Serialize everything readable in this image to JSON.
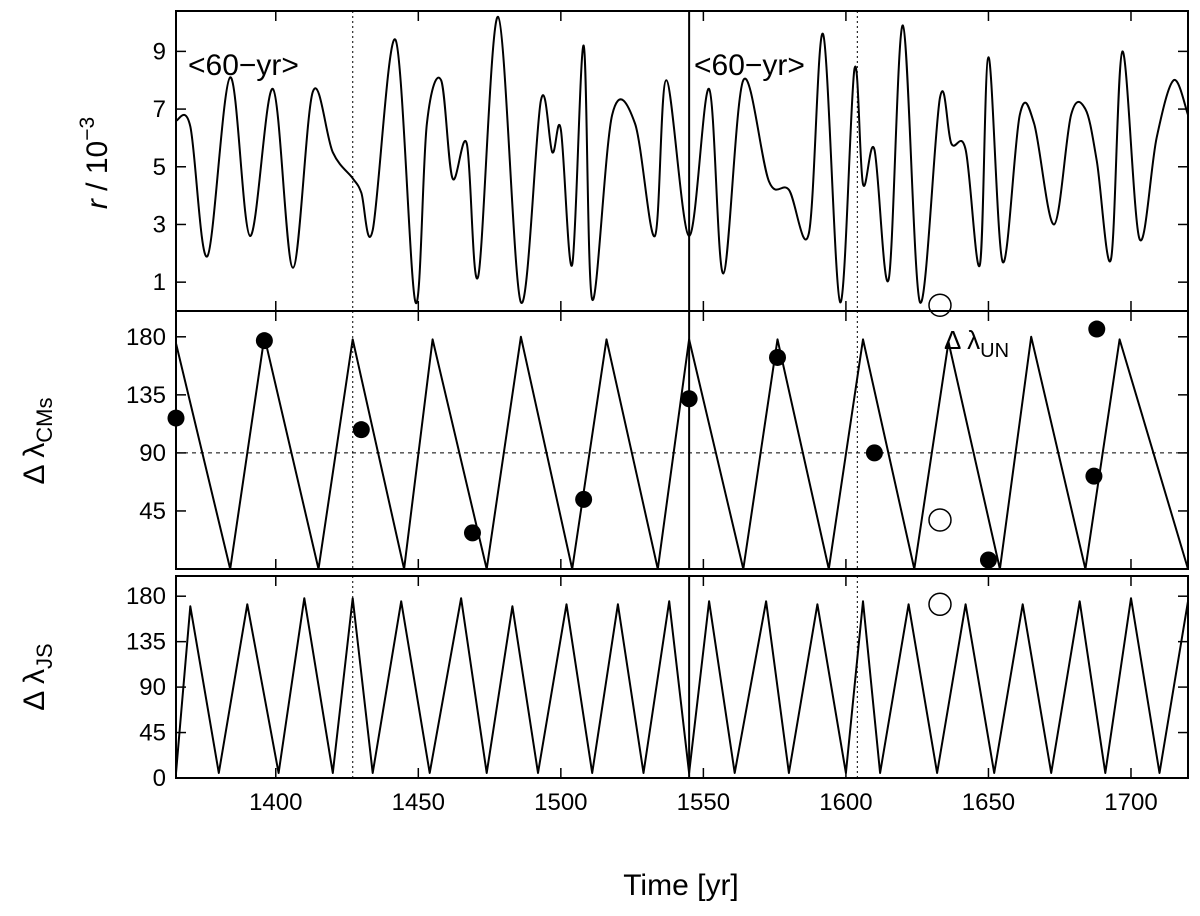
{
  "chart_data": {
    "type": "line",
    "x_axis": {
      "label": "Time [yr]",
      "range": [
        1365,
        1720
      ],
      "ticks": [
        1400,
        1450,
        1500,
        1550,
        1600,
        1650,
        1700
      ],
      "tick_labels": [
        "1400",
        "1450",
        "1500",
        "1550",
        "1600",
        "1650",
        "1700"
      ]
    },
    "markers": {
      "solid_vertical": [
        1545
      ],
      "dotted_vertical": [
        1427,
        1604
      ]
    },
    "panels": [
      {
        "id": "r",
        "ylabel_parts": {
          "var": "r",
          "mid": " / 10",
          "exp": "−3"
        },
        "ylim": [
          0,
          10.4
        ],
        "yticks": [
          1,
          3,
          5,
          7,
          9
        ],
        "ytick_labels": [
          "1",
          "3",
          "5",
          "7",
          "9"
        ],
        "annotations": [
          "<60−yr>",
          "<60−yr>"
        ],
        "series": [
          {
            "x": [
              1365,
              1370,
              1376,
              1384,
              1391,
              1399,
              1406,
              1413,
              1420,
              1427,
              1430,
              1434,
              1442,
              1449,
              1453,
              1458,
              1462,
              1467,
              1471,
              1478,
              1486,
              1493,
              1497,
              1500,
              1504,
              1508,
              1511,
              1518,
              1526,
              1533,
              1537,
              1545,
              1552,
              1557,
              1564,
              1573,
              1580,
              1587,
              1592,
              1598,
              1603,
              1606,
              1610,
              1615,
              1620,
              1626,
              1633,
              1637,
              1642,
              1647,
              1650,
              1655,
              1661,
              1666,
              1673,
              1679,
              1684,
              1688,
              1693,
              1697,
              1703,
              1709,
              1715,
              1720
            ],
            "y": [
              6.6,
              6.4,
              1.9,
              8.1,
              2.6,
              7.7,
              1.5,
              7.6,
              5.5,
              4.6,
              4.1,
              2.8,
              9.4,
              0.3,
              6.5,
              8.0,
              4.6,
              5.8,
              1.2,
              10.2,
              0.3,
              7.3,
              5.5,
              6.3,
              1.6,
              9.2,
              0.4,
              6.8,
              6.5,
              2.6,
              8.0,
              2.6,
              7.7,
              1.3,
              8.0,
              4.5,
              4.2,
              2.7,
              9.6,
              0.3,
              8.4,
              4.4,
              5.6,
              1.1,
              9.9,
              0.3,
              7.4,
              5.8,
              5.6,
              1.6,
              8.8,
              1.7,
              6.8,
              6.5,
              3.0,
              6.8,
              7.0,
              5.2,
              1.8,
              9.0,
              2.5,
              6.0,
              8.0,
              6.8
            ]
          }
        ]
      },
      {
        "id": "cms",
        "ylabel_parts": {
          "pre": "Δ λ",
          "sub": "CMs"
        },
        "ylim": [
          0,
          200
        ],
        "yticks": [
          45,
          90,
          135,
          180
        ],
        "ytick_labels": [
          "45",
          "90",
          "135",
          "180"
        ],
        "hline": 90,
        "label_annotation": {
          "pre": "Δ λ",
          "sub": "UN"
        },
        "series": [
          {
            "x": [
              1365,
              1384,
              1396,
              1415,
              1427,
              1445,
              1455,
              1474,
              1486,
              1504,
              1516,
              1534,
              1545,
              1564,
              1576,
              1594,
              1606,
              1624,
              1636,
              1654,
              1665,
              1684,
              1696,
              1720
            ],
            "y": [
              175,
              0,
              180,
              0,
              178,
              0,
              178,
              0,
              180,
              0,
              178,
              0,
              178,
              0,
              178,
              0,
              178,
              0,
              176,
              0,
              180,
              0,
              178,
              0
            ]
          }
        ],
        "points": {
          "x": [
            1365,
            1396,
            1430,
            1469,
            1508,
            1545,
            1576,
            1610,
            1650,
            1687,
            1688
          ],
          "y": [
            117,
            177,
            108,
            28,
            54,
            132,
            164,
            90,
            7,
            72,
            186
          ]
        }
      },
      {
        "id": "js",
        "ylabel_parts": {
          "pre": "Δ λ",
          "sub": "JS"
        },
        "ylim": [
          0,
          200
        ],
        "yticks": [
          0,
          45,
          90,
          135,
          180
        ],
        "ytick_labels": [
          "0",
          "45",
          "90",
          "135",
          "180"
        ],
        "series": [
          {
            "x": [
              1365,
              1370,
              1380,
              1390,
              1401,
              1410,
              1420,
              1427,
              1434,
              1444,
              1454,
              1465,
              1474,
              1483,
              1492,
              1502,
              1511,
              1520,
              1529,
              1538,
              1545,
              1552,
              1561,
              1572,
              1580,
              1590,
              1600,
              1606,
              1612,
              1622,
              1632,
              1642,
              1652,
              1662,
              1672,
              1682,
              1691,
              1700,
              1710,
              1720
            ],
            "y": [
              5,
              170,
              5,
              172,
              5,
              178,
              5,
              178,
              5,
              175,
              5,
              178,
              5,
              170,
              5,
              172,
              5,
              172,
              5,
              175,
              5,
              175,
              5,
              175,
              5,
              172,
              5,
              175,
              5,
              172,
              5,
              172,
              5,
              172,
              5,
              175,
              5,
              178,
              5,
              175
            ]
          }
        ]
      }
    ],
    "open_circles": [
      {
        "panel": "r",
        "x": 1633,
        "y": 0.2
      },
      {
        "panel": "cms",
        "x": 1633,
        "y": 38
      },
      {
        "panel": "js",
        "x": 1633,
        "y": 172
      }
    ]
  }
}
